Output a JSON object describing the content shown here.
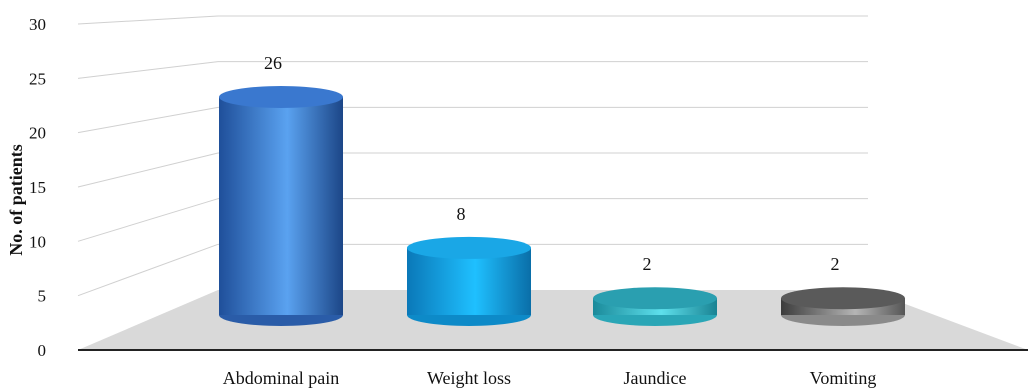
{
  "chart_data": {
    "type": "bar",
    "style": "3d-cylinder",
    "categories": [
      "Abdominal pain",
      "Weight loss",
      "Jaundice",
      "Vomiting"
    ],
    "values": [
      26,
      8,
      2,
      2
    ],
    "data_labels": [
      "26",
      "8",
      "2",
      "2"
    ],
    "ylabel": "No. of patients",
    "xlabel": "",
    "ylim": [
      0,
      30
    ],
    "yticks": [
      "0",
      "5",
      "10",
      "15",
      "20",
      "25",
      "30"
    ],
    "grid": true,
    "legend": "none",
    "colors": {
      "Abdominal pain": "#3d7fd6",
      "Weight loss": "#17aef0",
      "Jaundice": "#35b9c9",
      "Vomiting": "#6e6e6e",
      "floor": "#d9d9d9"
    }
  }
}
